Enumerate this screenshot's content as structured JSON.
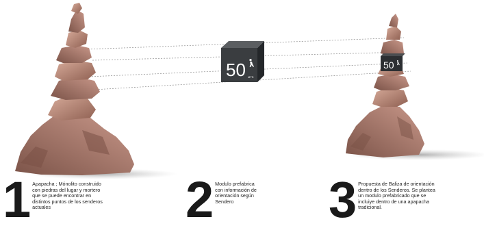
{
  "module_large": {
    "number": "50",
    "unit": "MTS"
  },
  "module_small": {
    "number": "50"
  },
  "steps": [
    {
      "number": "1",
      "text": "Apapacha ; Mónolito construido\ncon piedras del lugar y mortero\nque se puede encontrar en\ndistintos puntos de los senderos\nactuales"
    },
    {
      "number": "2",
      "text": "Modulo prefabrica\ncon información de\norientación según\nSendero"
    },
    {
      "number": "3",
      "text": "Propuesta de Baliza de orientación\ndentro de los Senderos. Se plantea\nun modulo prefabricado que se\nincluiye dentro de una apapacha\ntradicional."
    }
  ],
  "colors": {
    "module_face": "#3a3d40",
    "module_side": "#24272a",
    "module_top": "#5b5e61",
    "rock_light": "#c79a8a",
    "rock_dark": "#8c5f52",
    "guide_line": "#9a9a9a"
  },
  "icons": {
    "hiker": "hiker-icon"
  }
}
